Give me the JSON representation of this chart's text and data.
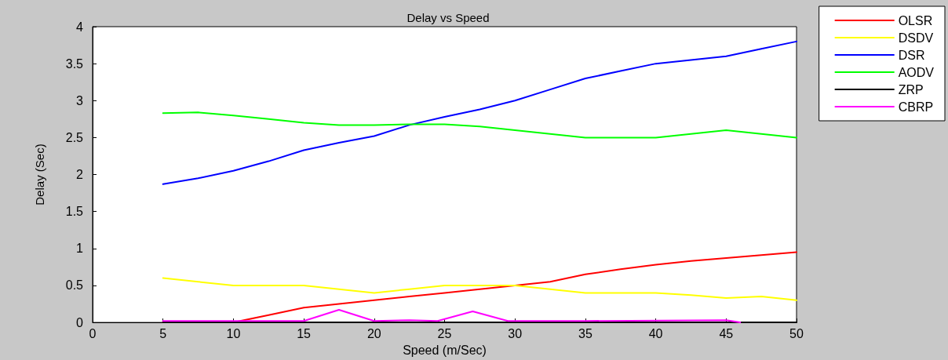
{
  "chart_data": {
    "type": "line",
    "title": "Delay vs Speed",
    "xlabel": "Speed (m/Sec)",
    "ylabel": "Delay (Sec)",
    "xlim": [
      0,
      50
    ],
    "xticks": [
      0,
      5,
      10,
      15,
      20,
      25,
      30,
      35,
      40,
      45,
      50
    ],
    "ylim": [
      0,
      4
    ],
    "yticks": [
      0,
      0.5,
      1,
      1.5,
      2,
      2.5,
      3,
      3.5,
      4
    ],
    "grid": false,
    "legend": "right",
    "marker": "none",
    "line_style": "solid",
    "x": [
      5,
      7.5,
      10,
      12.5,
      15,
      17.5,
      20,
      22.5,
      25,
      27.5,
      30,
      32.5,
      35,
      37.5,
      40,
      42.5,
      45,
      47.5,
      50
    ],
    "series": [
      {
        "name": "OLSR",
        "color": "#ff0000",
        "values": [
          0,
          0,
          0,
          0.1,
          0.2,
          0.25,
          0.3,
          0.35,
          0.4,
          0.45,
          0.5,
          0.55,
          0.65,
          0.72,
          0.78,
          0.83,
          0.87,
          0.91,
          0.95
        ]
      },
      {
        "name": "DSDV",
        "color": "#ffff00",
        "values": [
          0.6,
          0.55,
          0.5,
          0.5,
          0.5,
          0.45,
          0.4,
          0.45,
          0.5,
          0.5,
          0.5,
          0.45,
          0.4,
          0.4,
          0.4,
          0.37,
          0.33,
          0.35,
          0.3
        ]
      },
      {
        "name": "DSR",
        "color": "#0000ff",
        "values": [
          1.87,
          1.95,
          2.05,
          2.18,
          2.33,
          2.43,
          2.52,
          2.67,
          2.78,
          2.88,
          3.0,
          3.15,
          3.3,
          3.4,
          3.5,
          3.55,
          3.6,
          3.7,
          3.8
        ]
      },
      {
        "name": "AODV",
        "color": "#00ff00",
        "values": [
          2.83,
          2.84,
          2.8,
          2.75,
          2.7,
          2.67,
          2.67,
          2.68,
          2.68,
          2.65,
          2.6,
          2.55,
          2.5,
          2.5,
          2.5,
          2.55,
          2.6,
          2.55,
          2.5
        ]
      },
      {
        "name": "ZRP",
        "color": "#000000",
        "values": [
          0,
          0,
          0,
          0,
          0,
          0,
          0,
          0,
          0,
          0,
          0,
          0,
          0,
          0,
          0,
          0,
          0,
          0,
          0
        ]
      },
      {
        "name": "CBRP",
        "color": "#ff00ff",
        "x": [
          5,
          10,
          15,
          17.5,
          20,
          22.5,
          24.5,
          27,
          29.5,
          35,
          45,
          46
        ],
        "values": [
          0.02,
          0.02,
          0.02,
          0.17,
          0.02,
          0.03,
          0.02,
          0.15,
          0.02,
          0.02,
          0.03,
          0
        ]
      }
    ]
  }
}
